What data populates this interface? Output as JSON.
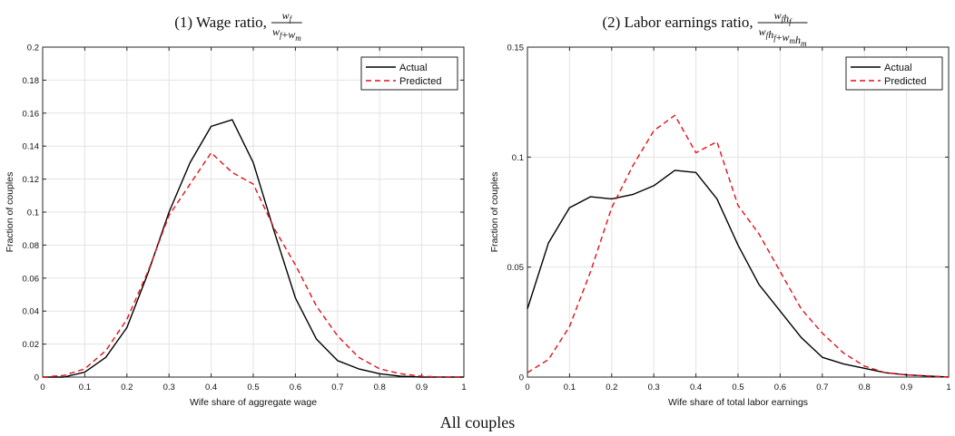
{
  "chart_data": [
    {
      "type": "line",
      "title": "(1) Wage ratio,",
      "title_fraction": {
        "numerator": "w_f",
        "denominator": "w_f + w_m"
      },
      "xlabel": "Wife share of aggregate wage",
      "ylabel": "Fraction of couples",
      "xlim": [
        0,
        1
      ],
      "ylim": [
        0,
        0.2
      ],
      "xticks": [
        "0",
        "0.1",
        "0.2",
        "0.3",
        "0.4",
        "0.5",
        "0.6",
        "0.7",
        "0.8",
        "0.9",
        "1"
      ],
      "yticks": [
        "0",
        "0.02",
        "0.04",
        "0.06",
        "0.08",
        "0.1",
        "0.12",
        "0.14",
        "0.16",
        "0.18",
        "0.2"
      ],
      "grid": true,
      "legend_position": "top-right",
      "series": [
        {
          "name": "Actual",
          "color": "#000000",
          "dash": "solid",
          "x": [
            0,
            0.05,
            0.1,
            0.15,
            0.2,
            0.25,
            0.3,
            0.35,
            0.4,
            0.45,
            0.5,
            0.55,
            0.6,
            0.65,
            0.7,
            0.75,
            0.8,
            0.85,
            0.9,
            0.95,
            1.0
          ],
          "y": [
            0,
            0,
            0.003,
            0.012,
            0.03,
            0.063,
            0.1,
            0.13,
            0.152,
            0.156,
            0.13,
            0.088,
            0.048,
            0.023,
            0.01,
            0.005,
            0.002,
            0.0005,
            0,
            0,
            0
          ]
        },
        {
          "name": "Predicted",
          "color": "#e0101a",
          "dash": "dashed",
          "x": [
            0,
            0.05,
            0.1,
            0.15,
            0.2,
            0.25,
            0.3,
            0.35,
            0.4,
            0.45,
            0.5,
            0.55,
            0.6,
            0.65,
            0.7,
            0.75,
            0.8,
            0.85,
            0.9,
            0.95,
            1.0
          ],
          "y": [
            0,
            0.001,
            0.005,
            0.016,
            0.035,
            0.064,
            0.098,
            0.117,
            0.136,
            0.124,
            0.117,
            0.09,
            0.068,
            0.043,
            0.025,
            0.012,
            0.005,
            0.002,
            0.0005,
            0,
            0
          ]
        }
      ]
    },
    {
      "type": "line",
      "title": "(2) Labor earnings ratio,",
      "title_fraction": {
        "numerator": "w_f h_f",
        "denominator": "w_f h_f + w_m h_m"
      },
      "xlabel": "Wife share of total labor earnings",
      "ylabel": "Fraction of couples",
      "xlim": [
        0,
        1
      ],
      "ylim": [
        0,
        0.15
      ],
      "xticks": [
        "0",
        "0.1",
        "0.2",
        "0.3",
        "0.4",
        "0.5",
        "0.6",
        "0.7",
        "0.8",
        "0.9",
        "1"
      ],
      "yticks": [
        "0",
        "0.05",
        "0.1",
        "0.15"
      ],
      "grid": true,
      "legend_position": "top-right",
      "series": [
        {
          "name": "Actual",
          "color": "#000000",
          "dash": "solid",
          "x": [
            0,
            0.05,
            0.1,
            0.15,
            0.2,
            0.25,
            0.3,
            0.35,
            0.4,
            0.45,
            0.5,
            0.55,
            0.6,
            0.65,
            0.7,
            0.75,
            0.8,
            0.85,
            0.9,
            0.95,
            1.0
          ],
          "y": [
            0.031,
            0.061,
            0.077,
            0.082,
            0.081,
            0.083,
            0.087,
            0.094,
            0.093,
            0.081,
            0.06,
            0.042,
            0.03,
            0.018,
            0.009,
            0.006,
            0.004,
            0.002,
            0.001,
            0.0005,
            0
          ]
        },
        {
          "name": "Predicted",
          "color": "#e0101a",
          "dash": "dashed",
          "x": [
            0,
            0.05,
            0.1,
            0.15,
            0.2,
            0.25,
            0.3,
            0.35,
            0.4,
            0.45,
            0.5,
            0.55,
            0.6,
            0.65,
            0.7,
            0.75,
            0.8,
            0.85,
            0.9,
            0.95,
            1.0
          ],
          "y": [
            0.002,
            0.008,
            0.023,
            0.048,
            0.077,
            0.096,
            0.112,
            0.119,
            0.102,
            0.107,
            0.078,
            0.065,
            0.048,
            0.031,
            0.02,
            0.011,
            0.005,
            0.002,
            0.001,
            0.0005,
            0
          ]
        }
      ]
    }
  ],
  "footer": {
    "caption": "All couples"
  }
}
